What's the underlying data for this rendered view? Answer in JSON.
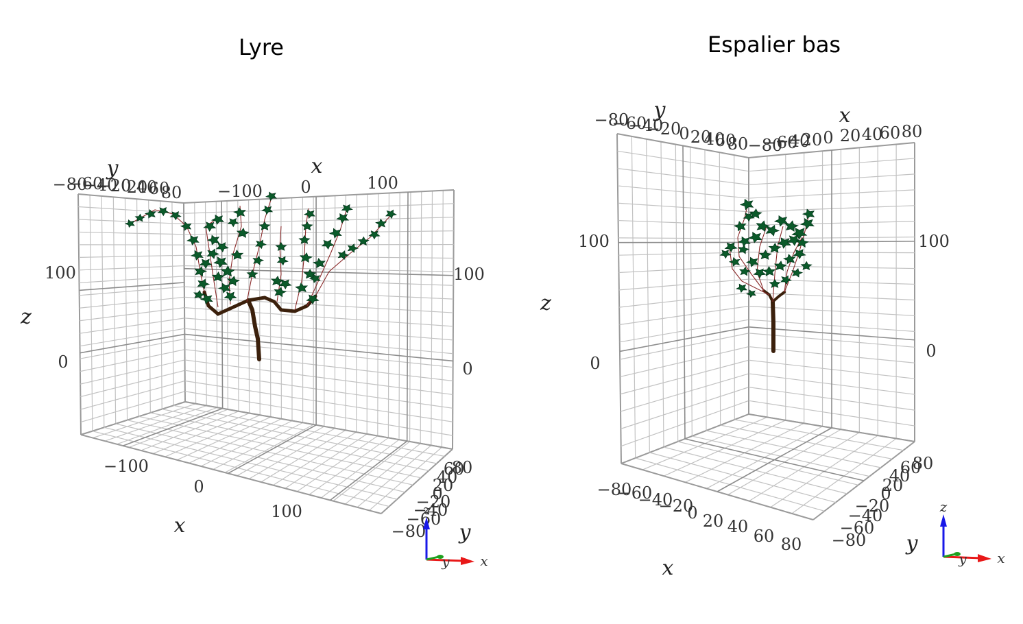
{
  "chart_data": [
    {
      "type": "3d-scene",
      "title": "Lyre",
      "axes": {
        "x": {
          "label": "x",
          "ticks": [
            "−100",
            "0",
            "100"
          ]
        },
        "y": {
          "label": "y",
          "ticks": [
            "−80",
            "−60",
            "−40",
            "−20",
            "0",
            "20",
            "40",
            "60",
            "80"
          ]
        },
        "z": {
          "label": "z",
          "ticks": [
            "0",
            "100"
          ]
        }
      },
      "grid": true,
      "triad": {
        "x": "x",
        "y": "y",
        "z": "z"
      },
      "trunk_color": "#3b200c",
      "leaf_color": "#0b5a2a",
      "leaf_edge_color": "#03361a",
      "twig_color": "#8a2a2a"
    },
    {
      "type": "3d-scene",
      "title": "Espalier bas",
      "axes": {
        "x": {
          "label": "x",
          "ticks": [
            "−80",
            "−60",
            "−40",
            "−20",
            "0",
            "20",
            "40",
            "60",
            "80"
          ]
        },
        "y": {
          "label": "y",
          "ticks": [
            "−80",
            "−60",
            "−40",
            "−20",
            "0",
            "20",
            "40",
            "60",
            "80"
          ]
        },
        "z": {
          "label": "z",
          "ticks": [
            "0",
            "100"
          ]
        }
      },
      "grid": true,
      "triad": {
        "x": "x",
        "y": "y",
        "z": "z"
      },
      "trunk_color": "#3b200c",
      "leaf_color": "#0b5a2a",
      "leaf_edge_color": "#03361a",
      "twig_color": "#8a2a2a"
    }
  ]
}
